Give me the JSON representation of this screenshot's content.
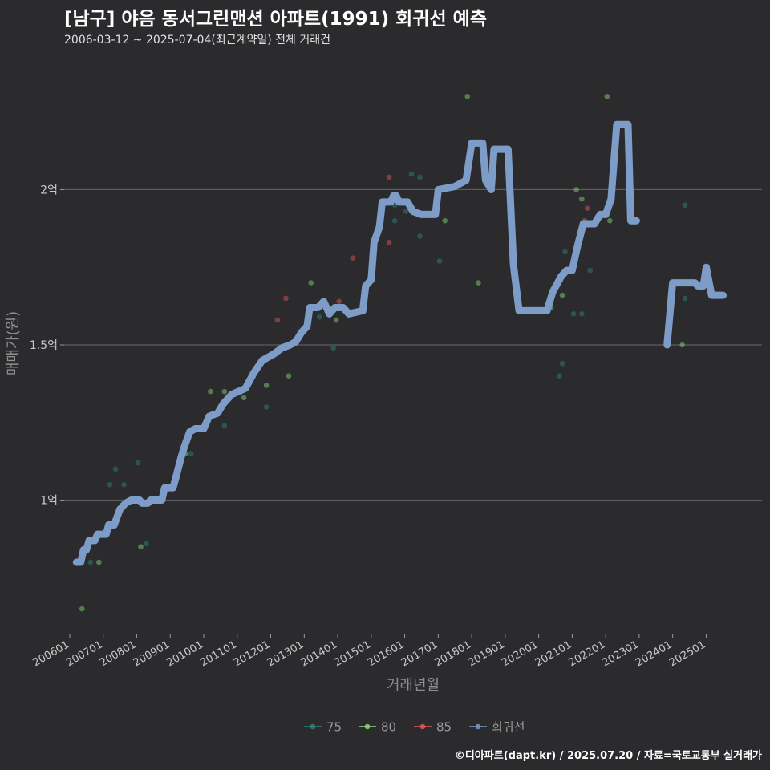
{
  "header": {
    "title": "[남구] 야음 동서그린맨션 아파트(1991) 회귀선 예측",
    "subtitle": "2006-03-12 ~ 2025-07-04(최근계약일) 전체 거래건"
  },
  "footer": {
    "caption": "©디아파트(dapt.kr) / 2025.07.20 / 자료=국토교통부 실거래가"
  },
  "colors": {
    "background": "#2b2b2e",
    "grid": "#5e5e62",
    "s75": "#2a8a7c",
    "s80": "#8fe07a",
    "s85": "#e85a5a",
    "regression": "#7d9cc8"
  },
  "chart_data": {
    "type": "scatter",
    "xlabel": "거래년월",
    "ylabel": "매매가(원)",
    "x_range": [
      "2005-11-01",
      "2026-09-01"
    ],
    "ylim": [
      0.57,
      2.43
    ],
    "y_ticks": [
      {
        "value": 1,
        "label": "1억"
      },
      {
        "value": 1.5,
        "label": "1.5억"
      },
      {
        "value": 2,
        "label": "2억"
      }
    ],
    "x_ticks": [
      "200601",
      "200701",
      "200801",
      "200901",
      "201001",
      "201101",
      "201201",
      "201301",
      "201401",
      "201501",
      "201601",
      "201701",
      "201801",
      "201901",
      "202001",
      "202101",
      "202201",
      "202301",
      "202401",
      "202501"
    ],
    "legend": [
      "75",
      "80",
      "85",
      "회귀선"
    ],
    "series": [
      {
        "name": "75",
        "color_key": "s75",
        "points": [
          [
            "2006-07",
            0.85
          ],
          [
            "2006-08",
            0.8
          ],
          [
            "2006-12",
            0.89
          ],
          [
            "2007-03",
            1.05
          ],
          [
            "2007-05",
            1.1
          ],
          [
            "2007-08",
            1.05
          ],
          [
            "2007-12",
            1.0
          ],
          [
            "2008-01",
            1.12
          ],
          [
            "2008-04",
            0.86
          ],
          [
            "2009-08",
            1.15
          ],
          [
            "2010-08",
            1.24
          ],
          [
            "2011-06",
            1.4
          ],
          [
            "2011-11",
            1.3
          ],
          [
            "2013-06",
            1.59
          ],
          [
            "2013-11",
            1.49
          ],
          [
            "2015-09",
            1.95
          ],
          [
            "2015-09",
            1.9
          ],
          [
            "2016-01",
            1.93
          ],
          [
            "2016-03",
            2.05
          ],
          [
            "2016-06",
            1.85
          ],
          [
            "2016-06",
            2.04
          ],
          [
            "2017-01",
            1.77
          ],
          [
            "2020-08",
            1.4
          ],
          [
            "2020-09",
            1.44
          ],
          [
            "2020-10",
            1.8
          ],
          [
            "2021-01",
            1.6
          ],
          [
            "2021-04",
            1.6
          ],
          [
            "2021-07",
            1.74
          ],
          [
            "2024-05",
            1.95
          ],
          [
            "2024-05",
            1.65
          ]
        ]
      },
      {
        "name": "80",
        "color_key": "s80",
        "points": [
          [
            "2006-05",
            0.65
          ],
          [
            "2006-11",
            0.8
          ],
          [
            "2008-02",
            0.85
          ],
          [
            "2009-06",
            1.15
          ],
          [
            "2010-03",
            1.35
          ],
          [
            "2010-08",
            1.35
          ],
          [
            "2011-03",
            1.33
          ],
          [
            "2011-11",
            1.37
          ],
          [
            "2012-07",
            1.4
          ],
          [
            "2013-03",
            1.7
          ],
          [
            "2013-12",
            1.58
          ],
          [
            "2014-05",
            1.6
          ],
          [
            "2017-03",
            1.9
          ],
          [
            "2017-11",
            2.3
          ],
          [
            "2018-03",
            1.7
          ],
          [
            "2020-02",
            1.61
          ],
          [
            "2020-05",
            1.62
          ],
          [
            "2020-09",
            1.66
          ],
          [
            "2021-02",
            2.0
          ],
          [
            "2021-04",
            1.97
          ],
          [
            "2022-01",
            2.3
          ],
          [
            "2022-02",
            1.9
          ],
          [
            "2024-04",
            1.5
          ]
        ]
      },
      {
        "name": "85",
        "color_key": "s85",
        "points": [
          [
            "2012-03",
            1.58
          ],
          [
            "2012-06",
            1.65
          ],
          [
            "2014-01",
            1.64
          ],
          [
            "2014-06",
            1.78
          ],
          [
            "2015-07",
            2.04
          ],
          [
            "2015-07",
            1.83
          ],
          [
            "2021-05",
            1.9
          ],
          [
            "2021-06",
            1.94
          ]
        ]
      }
    ],
    "regression": {
      "name": "회귀선",
      "segments": [
        [
          [
            "2006-03-15",
            0.8
          ],
          [
            "2006-05-01",
            0.8
          ],
          [
            "2006-06-01",
            0.84
          ],
          [
            "2006-07-01",
            0.84
          ],
          [
            "2006-08-01",
            0.87
          ],
          [
            "2006-10-01",
            0.87
          ],
          [
            "2006-11-01",
            0.89
          ],
          [
            "2007-02-01",
            0.89
          ],
          [
            "2007-03-01",
            0.92
          ],
          [
            "2007-05-01",
            0.92
          ],
          [
            "2007-07-01",
            0.97
          ],
          [
            "2007-09-01",
            0.99
          ],
          [
            "2007-11-01",
            1.0
          ],
          [
            "2008-02-01",
            1.0
          ],
          [
            "2008-03-01",
            0.99
          ],
          [
            "2008-05-01",
            0.99
          ],
          [
            "2008-06-01",
            1.0
          ],
          [
            "2008-10-01",
            1.0
          ],
          [
            "2008-11-01",
            1.04
          ],
          [
            "2009-02-01",
            1.04
          ],
          [
            "2009-03-01",
            1.07
          ],
          [
            "2009-05-01",
            1.14
          ],
          [
            "2009-06-01",
            1.17
          ],
          [
            "2009-08-01",
            1.22
          ],
          [
            "2009-10-01",
            1.23
          ],
          [
            "2010-01-01",
            1.23
          ],
          [
            "2010-03-01",
            1.27
          ],
          [
            "2010-06-01",
            1.28
          ],
          [
            "2010-08-01",
            1.31
          ],
          [
            "2010-11-01",
            1.34
          ],
          [
            "2011-04-01",
            1.36
          ],
          [
            "2011-07-01",
            1.41
          ],
          [
            "2011-10-01",
            1.45
          ],
          [
            "2012-02-01",
            1.47
          ],
          [
            "2012-05-01",
            1.49
          ],
          [
            "2012-08-01",
            1.5
          ],
          [
            "2012-10-01",
            1.51
          ],
          [
            "2012-12-01",
            1.54
          ],
          [
            "2013-02-01",
            1.56
          ],
          [
            "2013-03-01",
            1.62
          ],
          [
            "2013-06-01",
            1.62
          ],
          [
            "2013-08-01",
            1.64
          ],
          [
            "2013-10-01",
            1.6
          ],
          [
            "2013-12-01",
            1.62
          ],
          [
            "2014-03-01",
            1.62
          ],
          [
            "2014-05-01",
            1.6
          ],
          [
            "2014-10-01",
            1.61
          ],
          [
            "2014-11-01",
            1.69
          ],
          [
            "2015-01-01",
            1.71
          ],
          [
            "2015-02-01",
            1.83
          ],
          [
            "2015-04-01",
            1.88
          ],
          [
            "2015-05-01",
            1.96
          ],
          [
            "2015-08-01",
            1.96
          ],
          [
            "2015-09-01",
            1.98
          ],
          [
            "2015-10-01",
            1.98
          ],
          [
            "2015-11-01",
            1.96
          ],
          [
            "2016-02-01",
            1.96
          ],
          [
            "2016-04-01",
            1.93
          ],
          [
            "2016-07-01",
            1.92
          ],
          [
            "2016-12-01",
            1.92
          ],
          [
            "2017-01-01",
            2.0
          ],
          [
            "2017-07-01",
            2.01
          ],
          [
            "2017-11-01",
            2.03
          ],
          [
            "2018-01-01",
            2.15
          ],
          [
            "2018-05-01",
            2.15
          ],
          [
            "2018-06-01",
            2.03
          ],
          [
            "2018-08-01",
            2.0
          ],
          [
            "2018-09-01",
            2.13
          ],
          [
            "2019-02-01",
            2.13
          ],
          [
            "2019-04-01",
            1.76
          ],
          [
            "2019-06-01",
            1.61
          ],
          [
            "2020-04-01",
            1.61
          ],
          [
            "2020-06-01",
            1.67
          ],
          [
            "2020-09-01",
            1.72
          ],
          [
            "2020-11-01",
            1.74
          ],
          [
            "2021-01-01",
            1.74
          ],
          [
            "2021-03-01",
            1.82
          ],
          [
            "2021-05-01",
            1.89
          ],
          [
            "2021-09-01",
            1.89
          ],
          [
            "2021-11-01",
            1.92
          ],
          [
            "2022-01-01",
            1.92
          ],
          [
            "2022-03-01",
            1.97
          ],
          [
            "2022-05-01",
            2.21
          ],
          [
            "2022-09-01",
            2.21
          ],
          [
            "2022-10-01",
            1.9
          ],
          [
            "2022-12-01",
            1.9
          ]
        ],
        [
          [
            "2023-11-01",
            1.5
          ],
          [
            "2024-01-01",
            1.7
          ],
          [
            "2024-09-01",
            1.7
          ],
          [
            "2024-10-01",
            1.69
          ],
          [
            "2024-12-01",
            1.69
          ],
          [
            "2025-01-01",
            1.75
          ],
          [
            "2025-03-01",
            1.66
          ],
          [
            "2025-07-04",
            1.66
          ]
        ]
      ]
    }
  }
}
